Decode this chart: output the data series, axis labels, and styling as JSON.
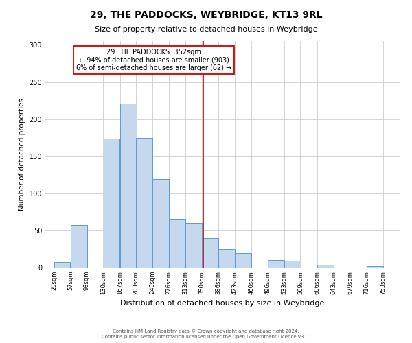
{
  "title": "29, THE PADDOCKS, WEYBRIDGE, KT13 9RL",
  "subtitle": "Size of property relative to detached houses in Weybridge",
  "xlabel": "Distribution of detached houses by size in Weybridge",
  "ylabel": "Number of detached properties",
  "bar_left_edges": [
    20,
    57,
    93,
    130,
    167,
    203,
    240,
    276,
    313,
    350,
    386,
    423,
    460,
    496,
    533,
    569,
    606,
    643,
    679,
    716
  ],
  "bar_heights": [
    7,
    57,
    0,
    174,
    221,
    175,
    119,
    66,
    60,
    40,
    25,
    19,
    0,
    10,
    9,
    0,
    4,
    0,
    0,
    2
  ],
  "bin_width": 37,
  "bar_color": "#c5d8ed",
  "bar_edge_color": "#5b9bd5",
  "vline_x": 352,
  "vline_color": "#cc0000",
  "annotation_title": "29 THE PADDOCKS: 352sqm",
  "annotation_line1": "← 94% of detached houses are smaller (903)",
  "annotation_line2": "6% of semi-detached houses are larger (62) →",
  "annotation_box_color": "#ffffff",
  "annotation_box_edge_color": "#cc0000",
  "tick_labels": [
    "20sqm",
    "57sqm",
    "93sqm",
    "130sqm",
    "167sqm",
    "203sqm",
    "240sqm",
    "276sqm",
    "313sqm",
    "350sqm",
    "386sqm",
    "423sqm",
    "460sqm",
    "496sqm",
    "533sqm",
    "569sqm",
    "606sqm",
    "643sqm",
    "679sqm",
    "716sqm",
    "753sqm"
  ],
  "ylim": [
    0,
    305
  ],
  "yticks": [
    0,
    50,
    100,
    150,
    200,
    250,
    300
  ],
  "footer1": "Contains HM Land Registry data © Crown copyright and database right 2024.",
  "footer2": "Contains public sector information licensed under the Open Government Licence v3.0.",
  "background_color": "#ffffff",
  "grid_color": "#cccccc",
  "title_fontsize": 10,
  "subtitle_fontsize": 8,
  "xlabel_fontsize": 8,
  "ylabel_fontsize": 7.5,
  "tick_fontsize": 6,
  "footer_fontsize": 5,
  "annotation_fontsize": 7,
  "xlim_left": 1,
  "xlim_right": 790
}
